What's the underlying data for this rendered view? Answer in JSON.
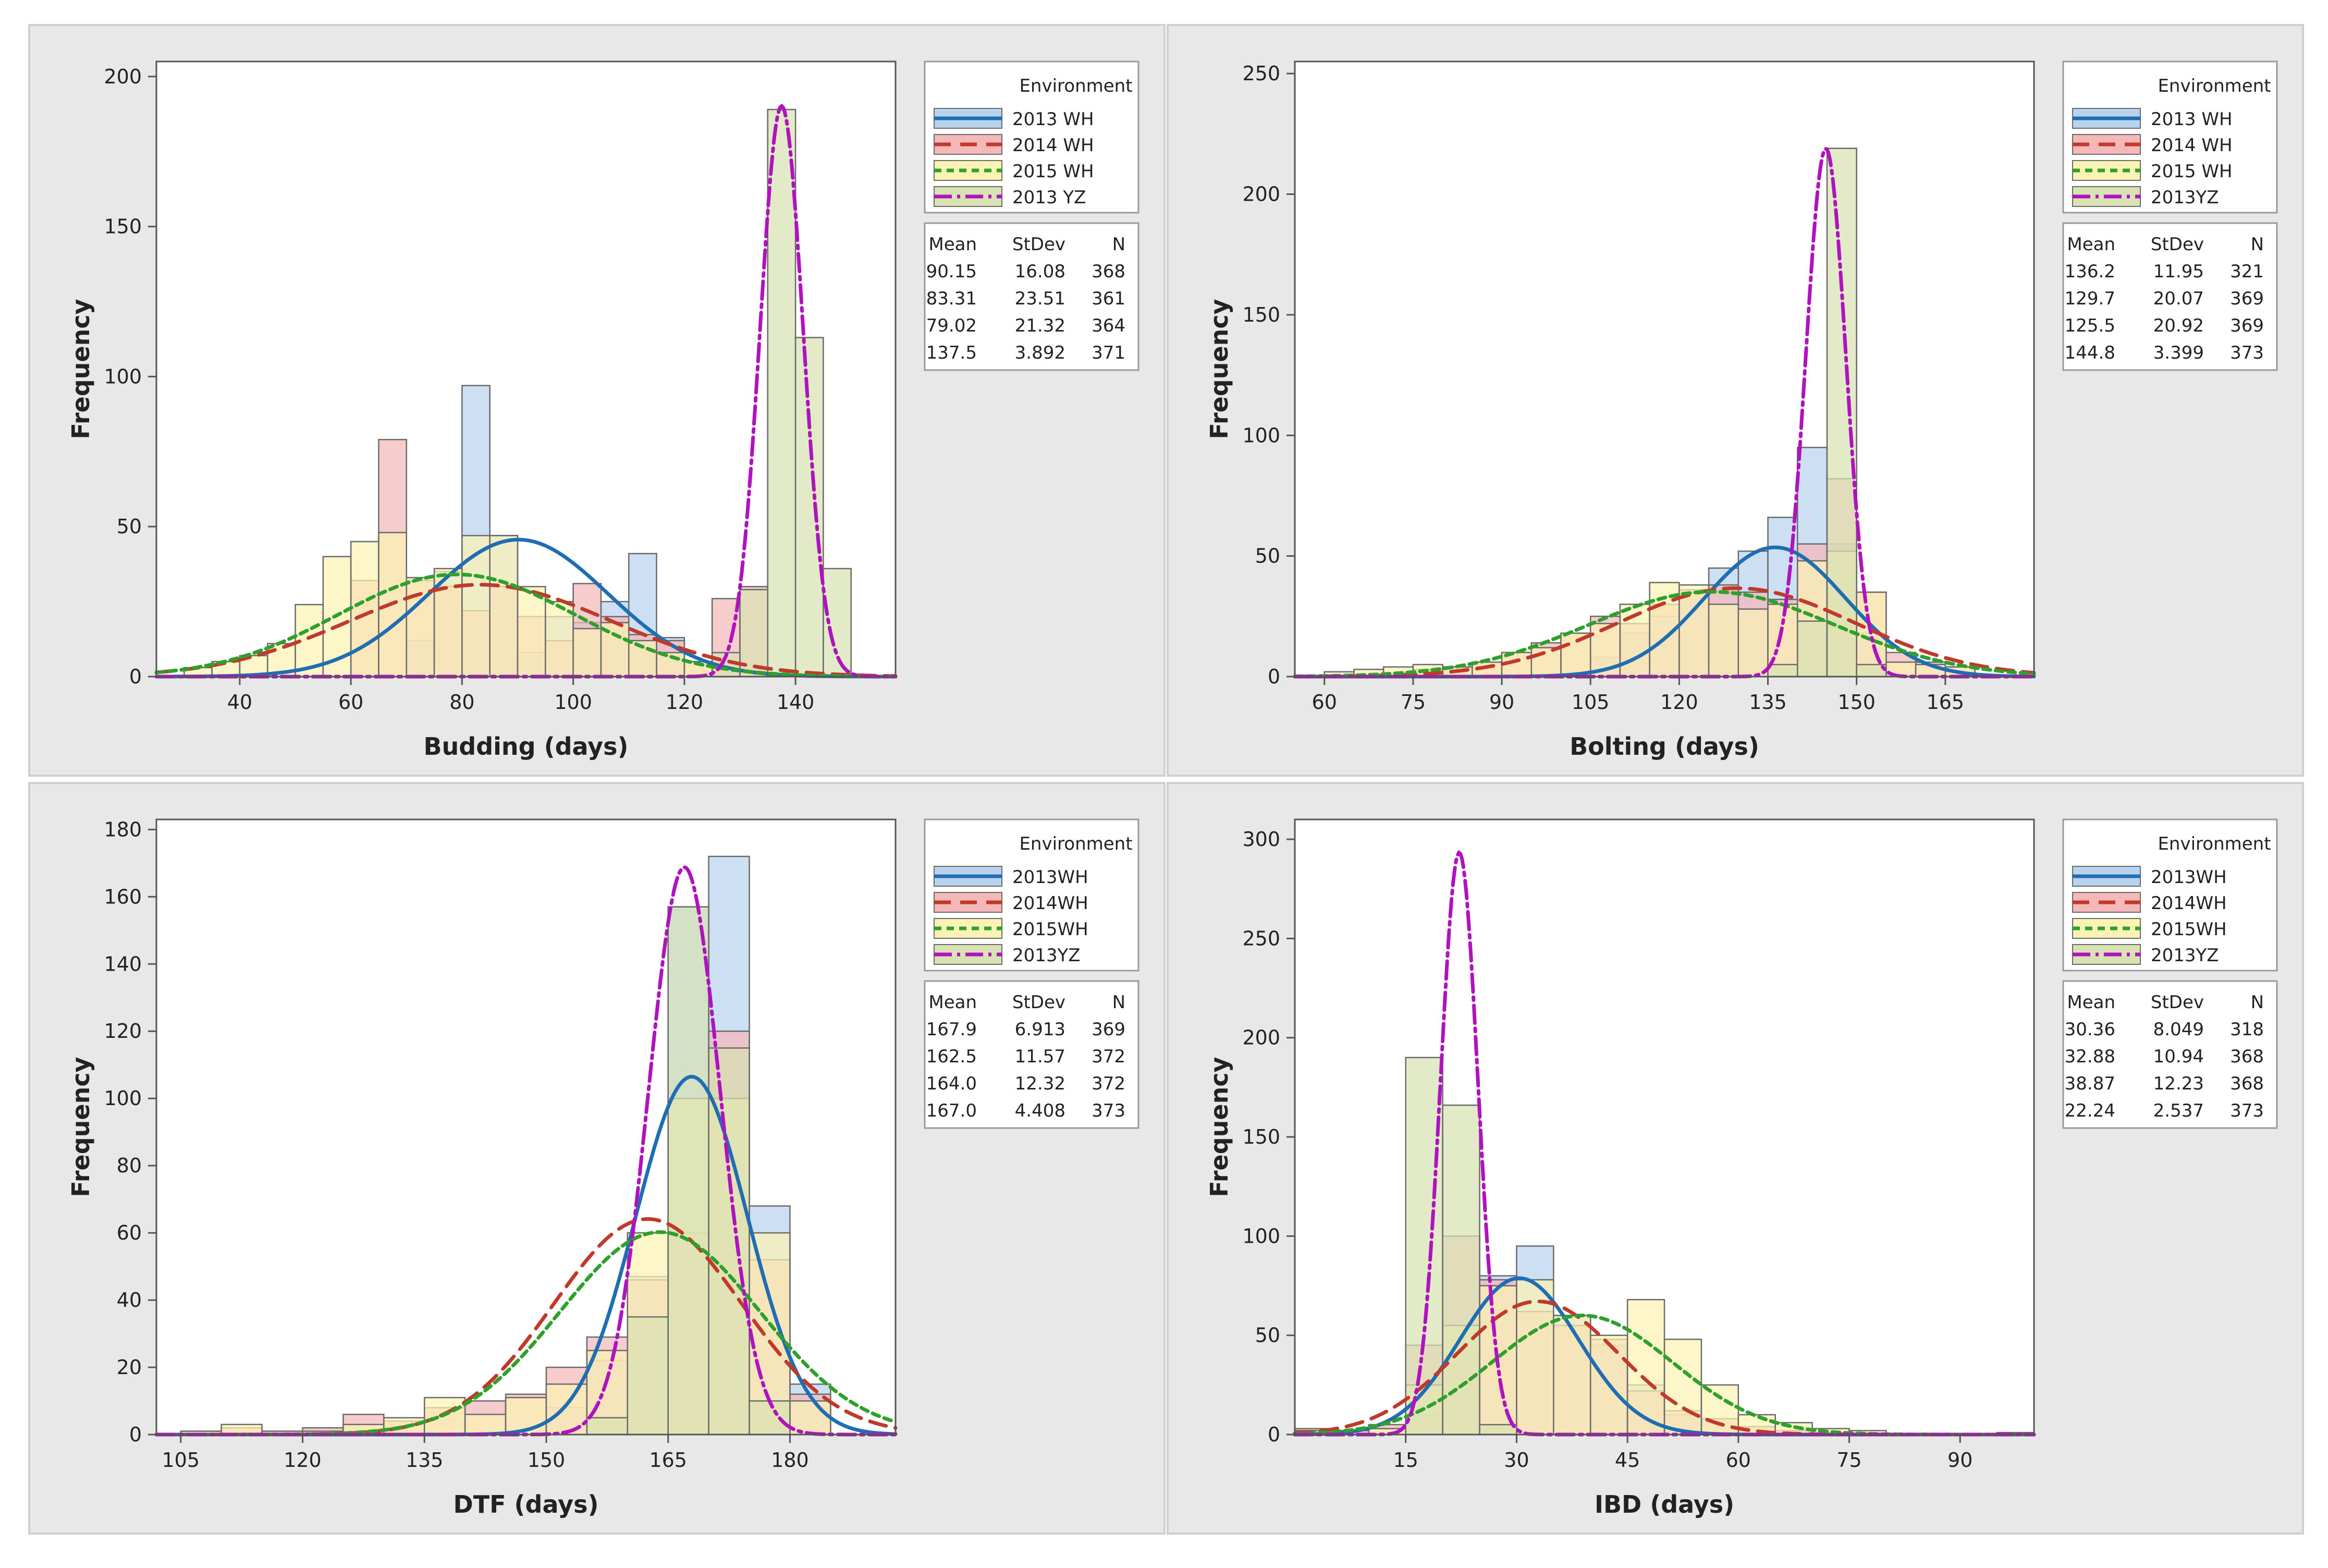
{
  "chart_data": [
    {
      "type": "histogram",
      "title": "",
      "xlabel": "Budding (days)",
      "ylabel": "Frequency",
      "xlim": [
        25,
        158
      ],
      "ylim": [
        0,
        205
      ],
      "xticks": [
        40,
        60,
        80,
        100,
        120,
        140
      ],
      "yticks": [
        0,
        50,
        100,
        150,
        200
      ],
      "legend_title": "Environment",
      "stats_header": [
        "Mean",
        "StDev",
        "N"
      ],
      "series": [
        {
          "name": "2013 WH",
          "mean": "90.15",
          "stdev": "16.08",
          "n": "368",
          "fill": "#b9d3ee",
          "line": "#1f6db3",
          "dash": "",
          "bins": [
            [
              70,
              12
            ],
            [
              75,
              35
            ],
            [
              80,
              97
            ],
            [
              85,
              47
            ],
            [
              90,
              8
            ],
            [
              95,
              20
            ],
            [
              100,
              18
            ],
            [
              105,
              25
            ],
            [
              110,
              41
            ],
            [
              115,
              13
            ]
          ]
        },
        {
          "name": "2014 WH",
          "mean": "83.31",
          "stdev": "23.51",
          "n": "361",
          "fill": "#f4b8b8",
          "line": "#c0392b",
          "dash": "32,18",
          "bins": [
            [
              60,
              32
            ],
            [
              65,
              79
            ],
            [
              70,
              32
            ],
            [
              75,
              30
            ],
            [
              80,
              22
            ],
            [
              85,
              30
            ],
            [
              90,
              20
            ],
            [
              95,
              12
            ],
            [
              100,
              31
            ],
            [
              105,
              20
            ],
            [
              110,
              14
            ],
            [
              115,
              12
            ],
            [
              120,
              5
            ],
            [
              125,
              26
            ],
            [
              130,
              30
            ]
          ]
        },
        {
          "name": "2015 WH",
          "mean": "79.02",
          "stdev": "21.32",
          "n": "364",
          "fill": "#fbf3b4",
          "line": "#2ea02c",
          "dash": "14,10",
          "bins": [
            [
              30,
              3
            ],
            [
              35,
              5
            ],
            [
              40,
              7
            ],
            [
              45,
              11
            ],
            [
              50,
              24
            ],
            [
              55,
              40
            ],
            [
              60,
              45
            ],
            [
              65,
              48
            ],
            [
              70,
              33
            ],
            [
              75,
              36
            ],
            [
              80,
              47
            ],
            [
              85,
              47
            ],
            [
              90,
              30
            ],
            [
              95,
              25
            ],
            [
              100,
              16
            ],
            [
              105,
              18
            ],
            [
              110,
              12
            ],
            [
              115,
              8
            ],
            [
              120,
              5
            ]
          ]
        },
        {
          "name": "2013 YZ",
          "mean": "137.5",
          "stdev": "3.892",
          "n": "371",
          "fill": "#d8e2b2",
          "line": "#b112c0",
          "dash": "34,10,6,10",
          "bins": [
            [
              125,
              8
            ],
            [
              130,
              29
            ],
            [
              135,
              189
            ],
            [
              140,
              113
            ],
            [
              145,
              36
            ]
          ]
        }
      ]
    },
    {
      "type": "histogram",
      "title": "",
      "xlabel": "Bolting (days)",
      "ylabel": "Frequency",
      "xlim": [
        55,
        180
      ],
      "ylim": [
        0,
        255
      ],
      "xticks": [
        60,
        75,
        90,
        105,
        120,
        135,
        150,
        165
      ],
      "yticks": [
        0,
        50,
        100,
        150,
        200,
        250
      ],
      "legend_title": "Environment",
      "stats_header": [
        "Mean",
        "StDev",
        "N"
      ],
      "series": [
        {
          "name": "2013 WH",
          "mean": "136.2",
          "stdev": "11.95",
          "n": "321",
          "fill": "#b9d3ee",
          "line": "#1f6db3",
          "dash": "",
          "bins": [
            [
              105,
              8
            ],
            [
              110,
              18
            ],
            [
              115,
              25
            ],
            [
              120,
              35
            ],
            [
              125,
              45
            ],
            [
              130,
              52
            ],
            [
              135,
              66
            ],
            [
              140,
              95
            ],
            [
              145,
              55
            ],
            [
              150,
              18
            ]
          ]
        },
        {
          "name": "2014 WH",
          "mean": "129.7",
          "stdev": "20.07",
          "n": "369",
          "fill": "#f4b8b8",
          "line": "#c0392b",
          "dash": "32,18",
          "bins": [
            [
              75,
              3
            ],
            [
              80,
              4
            ],
            [
              85,
              6
            ],
            [
              90,
              10
            ],
            [
              95,
              14
            ],
            [
              100,
              18
            ],
            [
              105,
              25
            ],
            [
              110,
              22
            ],
            [
              115,
              30
            ],
            [
              120,
              36
            ],
            [
              125,
              38
            ],
            [
              130,
              35
            ],
            [
              135,
              32
            ],
            [
              140,
              55
            ],
            [
              145,
              82
            ],
            [
              150,
              35
            ],
            [
              155,
              10
            ],
            [
              160,
              6
            ],
            [
              165,
              4
            ]
          ]
        },
        {
          "name": "2015 WH",
          "mean": "125.5",
          "stdev": "20.92",
          "n": "369",
          "fill": "#fbf3b4",
          "line": "#2ea02c",
          "dash": "14,10",
          "bins": [
            [
              60,
              2
            ],
            [
              65,
              3
            ],
            [
              70,
              4
            ],
            [
              75,
              5
            ],
            [
              80,
              4
            ],
            [
              85,
              6
            ],
            [
              90,
              10
            ],
            [
              95,
              12
            ],
            [
              100,
              18
            ],
            [
              105,
              22
            ],
            [
              110,
              30
            ],
            [
              115,
              39
            ],
            [
              120,
              38
            ],
            [
              125,
              30
            ],
            [
              130,
              28
            ],
            [
              135,
              30
            ],
            [
              140,
              48
            ],
            [
              145,
              52
            ],
            [
              150,
              35
            ],
            [
              155,
              6
            ],
            [
              160,
              5
            ],
            [
              165,
              4
            ]
          ]
        },
        {
          "name": "2013YZ",
          "mean": "144.8",
          "stdev": "3.399",
          "n": "373",
          "fill": "#d8e2b2",
          "line": "#b112c0",
          "dash": "34,10,6,10",
          "bins": [
            [
              135,
              5
            ],
            [
              140,
              23
            ],
            [
              145,
              219
            ],
            [
              150,
              5
            ]
          ]
        }
      ]
    },
    {
      "type": "histogram",
      "title": "",
      "xlabel": "DTF (days)",
      "ylabel": "Frequency",
      "xlim": [
        102,
        193
      ],
      "ylim": [
        0,
        183
      ],
      "xticks": [
        105,
        120,
        135,
        150,
        165,
        180
      ],
      "yticks": [
        0,
        20,
        40,
        60,
        80,
        100,
        120,
        140,
        160,
        180
      ],
      "legend_title": "Environment",
      "stats_header": [
        "Mean",
        "StDev",
        "N"
      ],
      "series": [
        {
          "name": "2013WH",
          "mean": "167.9",
          "stdev": "6.913",
          "n": "369",
          "fill": "#b9d3ee",
          "line": "#1f6db3",
          "dash": "",
          "bins": [
            [
              150,
              8
            ],
            [
              155,
              22
            ],
            [
              160,
              47
            ],
            [
              165,
              157
            ],
            [
              170,
              172
            ],
            [
              175,
              68
            ],
            [
              180,
              15
            ]
          ]
        },
        {
          "name": "2014WH",
          "mean": "162.5",
          "stdev": "11.57",
          "n": "372",
          "fill": "#f4b8b8",
          "line": "#c0392b",
          "dash": "32,18",
          "bins": [
            [
              105,
              1
            ],
            [
              110,
              2
            ],
            [
              115,
              1
            ],
            [
              120,
              2
            ],
            [
              125,
              6
            ],
            [
              130,
              4
            ],
            [
              135,
              8
            ],
            [
              140,
              10
            ],
            [
              145,
              12
            ],
            [
              150,
              20
            ],
            [
              155,
              29
            ],
            [
              160,
              46
            ],
            [
              165,
              60
            ],
            [
              170,
              120
            ],
            [
              175,
              52
            ],
            [
              180,
              12
            ]
          ]
        },
        {
          "name": "2015WH",
          "mean": "164.0",
          "stdev": "12.32",
          "n": "372",
          "fill": "#fbf3b4",
          "line": "#2ea02c",
          "dash": "14,10",
          "bins": [
            [
              105,
              1
            ],
            [
              110,
              3
            ],
            [
              115,
              1
            ],
            [
              120,
              1
            ],
            [
              125,
              3
            ],
            [
              130,
              5
            ],
            [
              135,
              11
            ],
            [
              140,
              6
            ],
            [
              145,
              11
            ],
            [
              150,
              15
            ],
            [
              155,
              25
            ],
            [
              160,
              60
            ],
            [
              165,
              100
            ],
            [
              170,
              100
            ],
            [
              175,
              60
            ],
            [
              180,
              10
            ]
          ]
        },
        {
          "name": "2013YZ",
          "mean": "167.0",
          "stdev": "4.408",
          "n": "373",
          "fill": "#d8e2b2",
          "line": "#b112c0",
          "dash": "34,10,6,10",
          "bins": [
            [
              155,
              5
            ],
            [
              160,
              35
            ],
            [
              165,
              157
            ],
            [
              170,
              115
            ],
            [
              175,
              10
            ]
          ]
        }
      ]
    },
    {
      "type": "histogram",
      "title": "",
      "xlabel": "IBD (days)",
      "ylabel": "Frequency",
      "xlim": [
        0,
        100
      ],
      "ylim": [
        0,
        310
      ],
      "xticks": [
        15,
        30,
        45,
        60,
        75,
        90
      ],
      "yticks": [
        0,
        50,
        100,
        150,
        200,
        250,
        300
      ],
      "legend_title": "Environment",
      "stats_header": [
        "Mean",
        "StDev",
        "N"
      ],
      "series": [
        {
          "name": "2013WH",
          "mean": "30.36",
          "stdev": "8.049",
          "n": "318",
          "fill": "#b9d3ee",
          "line": "#1f6db3",
          "dash": "",
          "bins": [
            [
              15,
              10
            ],
            [
              20,
              40
            ],
            [
              25,
              80
            ],
            [
              30,
              95
            ],
            [
              35,
              60
            ],
            [
              40,
              45
            ],
            [
              45,
              25
            ],
            [
              50,
              10
            ]
          ]
        },
        {
          "name": "2014WH",
          "mean": "32.88",
          "stdev": "10.94",
          "n": "368",
          "fill": "#f4b8b8",
          "line": "#c0392b",
          "dash": "32,18",
          "bins": [
            [
              0,
              3
            ],
            [
              5,
              2
            ],
            [
              10,
              5
            ],
            [
              15,
              45
            ],
            [
              20,
              100
            ],
            [
              25,
              78
            ],
            [
              30,
              62
            ],
            [
              35,
              55
            ],
            [
              40,
              48
            ],
            [
              45,
              22
            ],
            [
              50,
              12
            ],
            [
              55,
              8
            ],
            [
              60,
              4
            ],
            [
              65,
              2
            ]
          ]
        },
        {
          "name": "2015WH",
          "mean": "38.87",
          "stdev": "12.23",
          "n": "368",
          "fill": "#fbf3b4",
          "line": "#2ea02c",
          "dash": "14,10",
          "bins": [
            [
              0,
              2
            ],
            [
              10,
              3
            ],
            [
              15,
              25
            ],
            [
              20,
              55
            ],
            [
              25,
              75
            ],
            [
              30,
              78
            ],
            [
              35,
              60
            ],
            [
              40,
              50
            ],
            [
              45,
              68
            ],
            [
              50,
              48
            ],
            [
              55,
              25
            ],
            [
              60,
              10
            ],
            [
              65,
              6
            ],
            [
              70,
              3
            ],
            [
              75,
              2
            ],
            [
              95,
              1
            ]
          ]
        },
        {
          "name": "2013YZ",
          "mean": "22.24",
          "stdev": "2.537",
          "n": "373",
          "fill": "#d8e2b2",
          "line": "#b112c0",
          "dash": "34,10,6,10",
          "bins": [
            [
              15,
              190
            ],
            [
              20,
              166
            ],
            [
              25,
              5
            ]
          ]
        }
      ]
    }
  ]
}
